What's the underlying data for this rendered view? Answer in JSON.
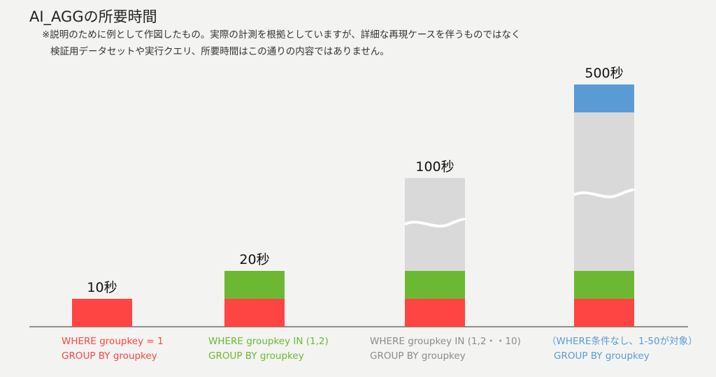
{
  "title": "AI_AGGの所要時間",
  "note": {
    "line1": "※説明のために例として作図したもの。実際の計測を根拠としていますが、詳細な再現ケースを伴うものではなく",
    "line2": "検証用データセットや実行クエリ、所要時間はこの通りの内容ではありません。"
  },
  "colors": {
    "red": "#ff4444",
    "green": "#6db832",
    "gray": "#d9d9d9",
    "blue": "#5b9bd5",
    "axis": "#555555",
    "label_gray": "#8c8c8c"
  },
  "chart_data": {
    "type": "bar",
    "unit": "秒",
    "categories": [
      {
        "line1": "WHERE groupkey = 1",
        "line2": "GROUP BY groupkey",
        "color": "#ff4444"
      },
      {
        "line1": "WHERE groupkey IN (1,2)",
        "line2": "GROUP BY groupkey",
        "color": "#6db832"
      },
      {
        "line1": "WHERE groupkey IN (1,2・・10)",
        "line2": "GROUP BY groupkey",
        "color": "#8c8c8c"
      },
      {
        "line1": "（WHERE条件なし、1-50が対象）",
        "line2": "GROUP BY groupkey",
        "color": "#5b9bd5"
      }
    ],
    "values": [
      10,
      20,
      100,
      500
    ],
    "value_labels": [
      "10秒",
      "20秒",
      "100秒",
      "500秒"
    ],
    "axis_break": true
  }
}
